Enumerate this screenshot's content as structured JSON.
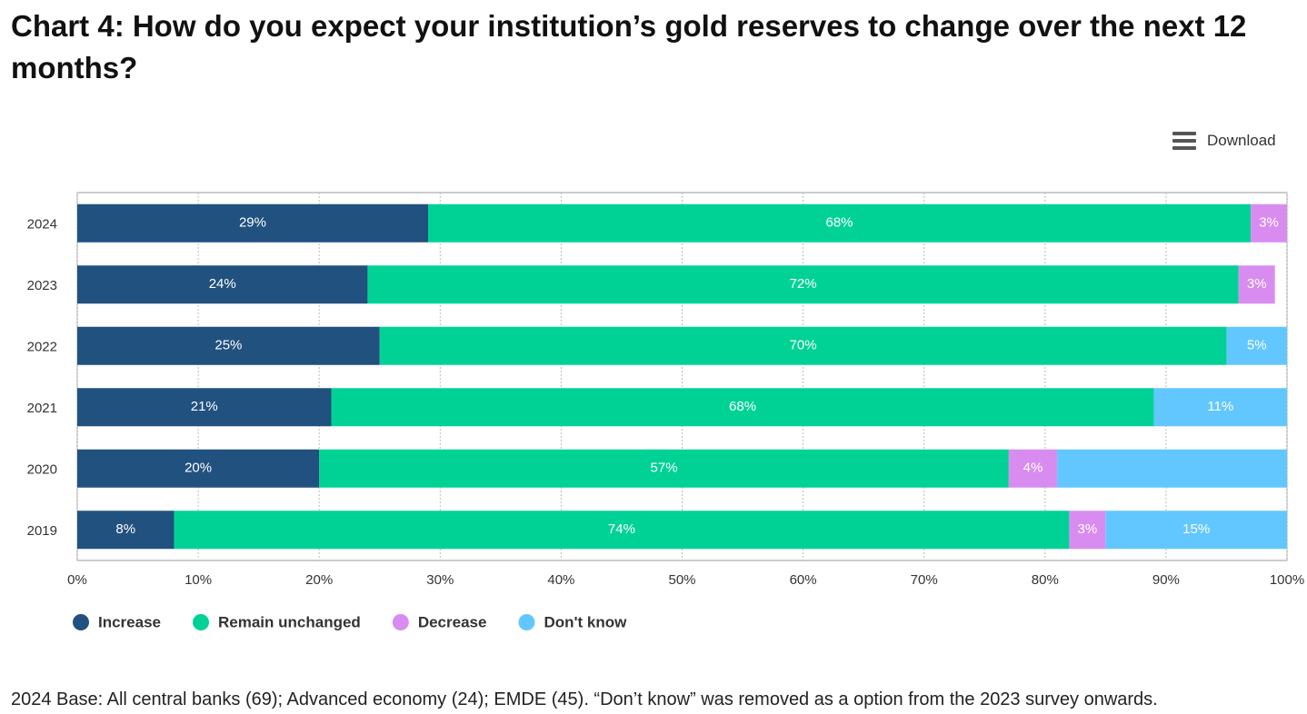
{
  "title": "Chart 4: How do you expect your institution’s gold reserves to change over the next 12 months?",
  "download": "Download",
  "footnote": "2024 Base: All central banks (69); Advanced economy (24); EMDE (45). “Don’t know” was removed as a option from the 2023 survey onwards.",
  "chart_data": {
    "type": "stacked-bar-horizontal",
    "categories": [
      "2024",
      "2023",
      "2022",
      "2021",
      "2020",
      "2019"
    ],
    "series": [
      {
        "name": "Increase",
        "color": "#21517f",
        "values": [
          29,
          24,
          25,
          21,
          20,
          8
        ],
        "value_labels": [
          "29%",
          "24%",
          "25%",
          "21%",
          "20%",
          "8%"
        ]
      },
      {
        "name": "Remain unchanged",
        "color": "#00d296",
        "values": [
          68,
          72,
          70,
          68,
          57,
          74
        ],
        "value_labels": [
          "68%",
          "72%",
          "70%",
          "68%",
          "57%",
          "74%"
        ]
      },
      {
        "name": "Decrease",
        "color": "#d98cf0",
        "values": [
          3,
          3,
          null,
          null,
          4,
          3
        ],
        "value_labels": [
          "3%",
          "3%",
          null,
          null,
          "4%",
          "3%"
        ]
      },
      {
        "name": "Don't know",
        "color": "#63c7ff",
        "values": [
          null,
          null,
          5,
          11,
          19,
          15
        ],
        "value_labels": [
          null,
          null,
          "5%",
          "11%",
          null,
          "15%"
        ]
      }
    ],
    "xlim": [
      0,
      100
    ],
    "xticks": [
      {
        "value": 0,
        "label": "0%"
      },
      {
        "value": 10,
        "label": "10%"
      },
      {
        "value": 20,
        "label": "20%"
      },
      {
        "value": 30,
        "label": "30%"
      },
      {
        "value": 40,
        "label": "40%"
      },
      {
        "value": 50,
        "label": "50%"
      },
      {
        "value": 60,
        "label": "60%"
      },
      {
        "value": 70,
        "label": "70%"
      },
      {
        "value": 80,
        "label": "80%"
      },
      {
        "value": 90,
        "label": "90%"
      },
      {
        "value": 100,
        "label": "100%"
      }
    ],
    "grid": true,
    "legend": "bottom-left"
  }
}
